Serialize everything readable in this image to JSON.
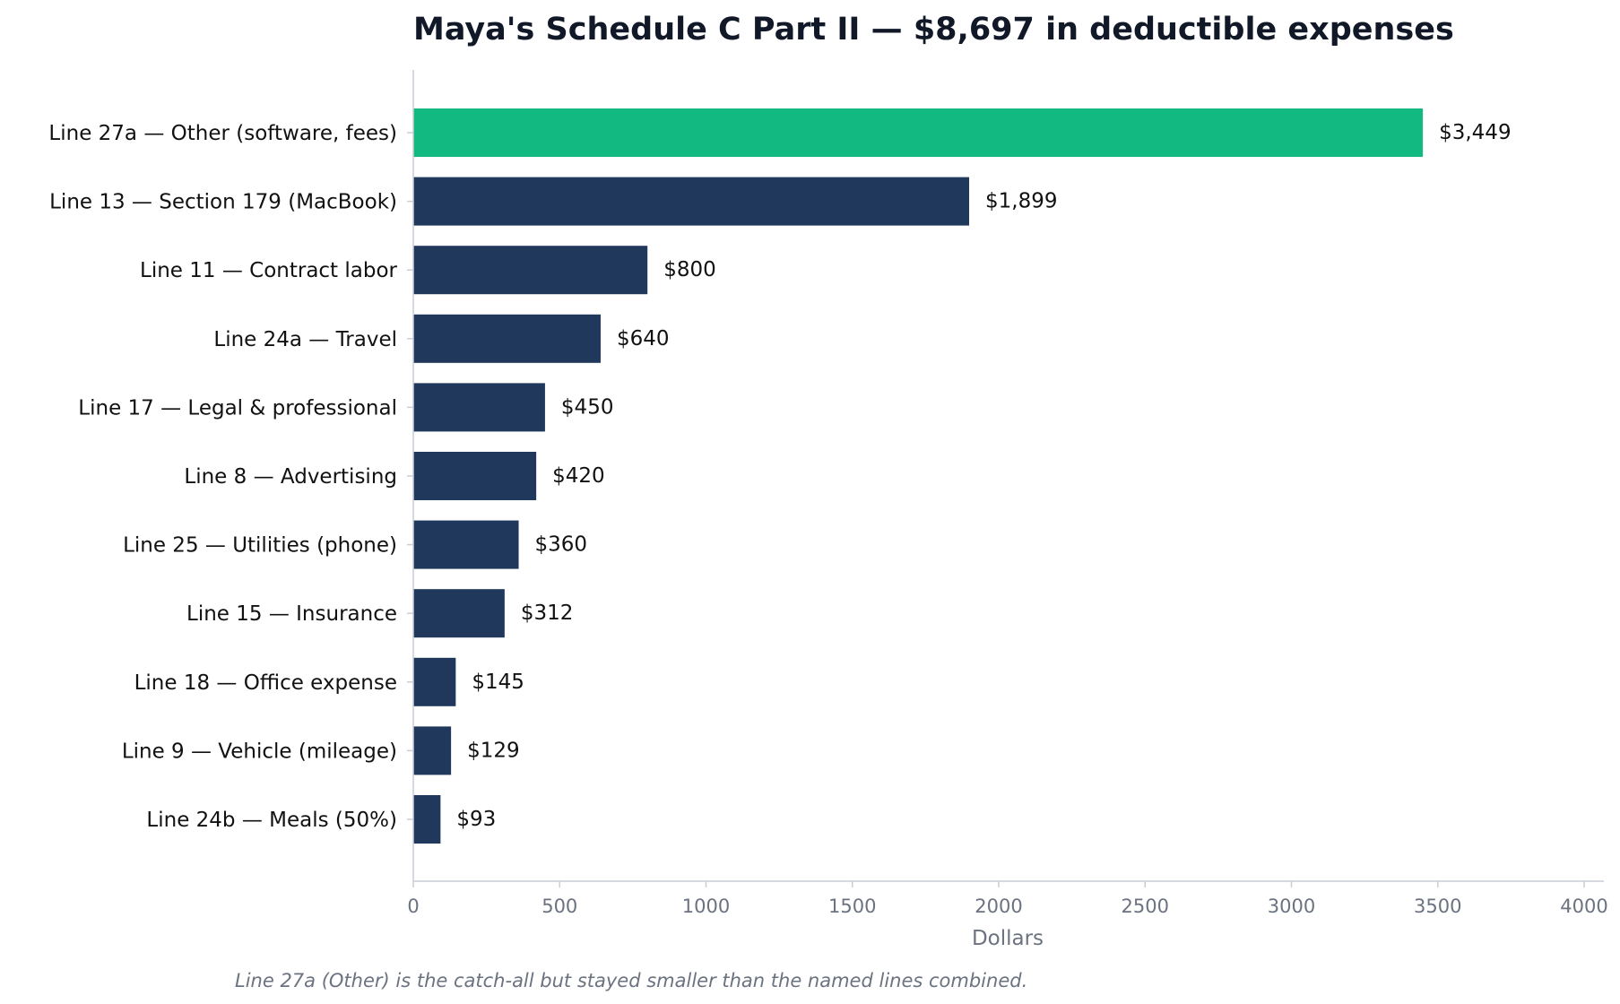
{
  "chart_data": {
    "type": "bar",
    "orientation": "horizontal",
    "title": "Maya's Schedule C Part II — $8,697 in deductible expenses",
    "xlabel": "Dollars",
    "ylabel": "",
    "xlim": [
      0,
      4000
    ],
    "xticks": [
      0,
      500,
      1000,
      1500,
      2000,
      2500,
      3000,
      3500,
      4000
    ],
    "grid": false,
    "categories": [
      "Line 27a — Other (software, fees)",
      "Line 13 — Section 179 (MacBook)",
      "Line 11 — Contract labor",
      "Line 24a — Travel",
      "Line 17 — Legal & professional",
      "Line 8 — Advertising",
      "Line 25 — Utilities (phone)",
      "Line 15 — Insurance",
      "Line 18 — Office expense",
      "Line 9 — Vehicle (mileage)",
      "Line 24b — Meals (50%)"
    ],
    "values": [
      3449,
      1899,
      800,
      640,
      450,
      420,
      360,
      312,
      145,
      129,
      93
    ],
    "value_labels": [
      "$3,449",
      "$1,899",
      "$800",
      "$640",
      "$450",
      "$420",
      "$360",
      "$312",
      "$145",
      "$129",
      "$93"
    ],
    "highlight_index": 0,
    "colors": {
      "highlight": "#12b981",
      "default": "#1f385c",
      "axis": "#c9ced6",
      "text": "#111111",
      "muted": "#6b7280"
    },
    "footnote": "Line 27a (Other) is the catch-all but stayed smaller than the named lines combined."
  }
}
